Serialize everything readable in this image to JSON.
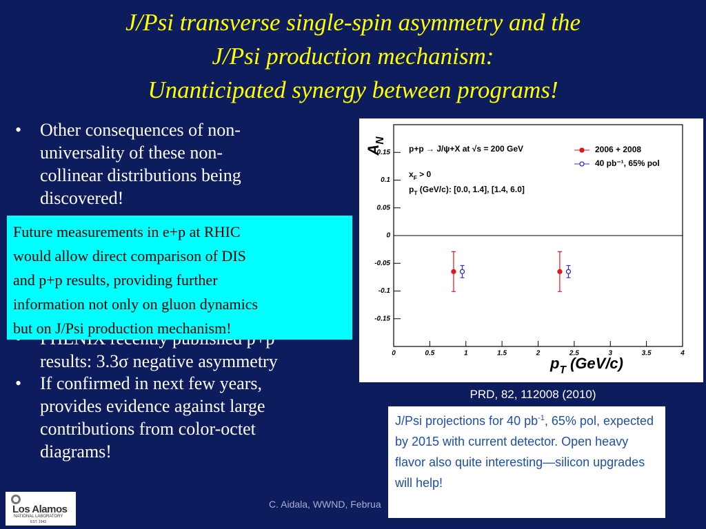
{
  "slide": {
    "title": [
      "J/Psi transverse single-spin asymmetry and the",
      "J/Psi production mechanism:",
      "Unanticipated synergy between programs!"
    ],
    "bullets": [
      [
        "Other consequences of non-",
        "universality of these non-",
        "collinear distributions being",
        "discovered!"
      ],
      [
        "PHENIX recently published  p+p",
        "results: 3.3σ negative asymmetry"
      ],
      [
        "If confirmed in next few years,",
        "provides evidence against large",
        "contributions from color-octet",
        "diagrams!"
      ]
    ],
    "callout": [
      "Future measurements in e+p at RHIC",
      "would allow direct comparison of DIS",
      "and p+p results, providing further",
      "information not only on gluon dynamics",
      "but on J/Psi production mechanism!"
    ],
    "caption": "PRD, 82, 112008 (2010)",
    "note": [
      "J/Psi projections for 40 pb",
      "-1",
      ", 65% pol, expected by 2015 with current detector.  Open heavy flavor also quite interesting—silicon upgrades will help!"
    ],
    "footer": "C. Aidala, WWND, Februa",
    "logo": [
      "Los Alamos",
      "NATIONAL LABORATORY",
      "EST. 1943"
    ]
  },
  "chart_data": {
    "type": "scatter",
    "ylabel": [
      "A",
      "N"
    ],
    "xlabel": [
      "p",
      "T",
      " (GeV/c)"
    ],
    "annotations": [
      [
        "p+p → J/ψ+X  at √s = 200 GeV"
      ],
      [
        "x",
        "F",
        " > 0"
      ],
      [
        "p",
        "T",
        " (GeV/c): [0.0, 1.4], [1.4, 6.0]"
      ]
    ],
    "xlim": [
      0,
      4
    ],
    "xticks": [
      0,
      0.5,
      1,
      1.5,
      2,
      2.5,
      3,
      3.5,
      4
    ],
    "ylim": [
      -0.2,
      0.2
    ],
    "yticks": [
      -0.15,
      -0.1,
      -0.05,
      0,
      0.05,
      0.1,
      0.15
    ],
    "grid": false,
    "series": [
      {
        "name": "2006 + 2008",
        "color": "#e3141c",
        "marker": "filled",
        "x": [
          0.83,
          2.3
        ],
        "values": [
          -0.065,
          -0.065
        ],
        "errors": [
          0.036,
          0.036
        ]
      },
      {
        "name": "40 pb⁻¹, 65% pol",
        "color": "#3030b0",
        "marker": "open",
        "x": [
          0.95,
          2.42
        ],
        "values": [
          -0.065,
          -0.065
        ],
        "errors": [
          0.011,
          0.011
        ]
      }
    ]
  }
}
